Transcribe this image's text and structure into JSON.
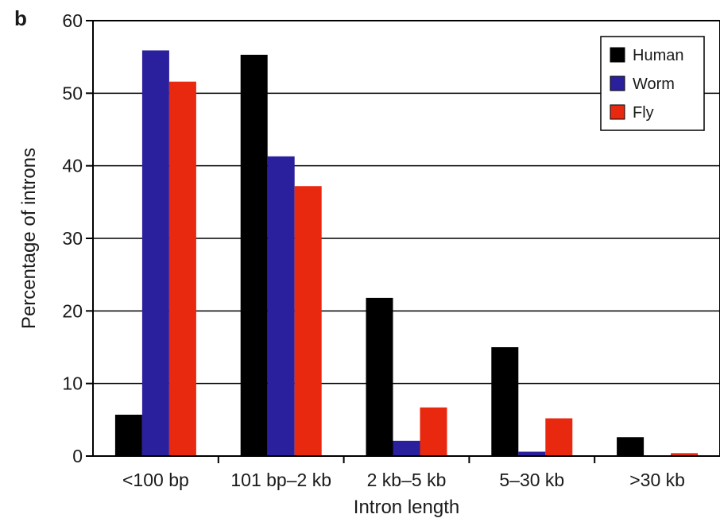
{
  "panel_label": "b",
  "chart_data": {
    "type": "bar",
    "title": "",
    "xlabel": "Intron length",
    "ylabel": "Percentage of introns",
    "ylim": [
      0,
      60
    ],
    "yticks": [
      0,
      10,
      20,
      30,
      40,
      50,
      60
    ],
    "categories": [
      "<100 bp",
      "101 bp–2 kb",
      "2 kb–5 kb",
      "5–30 kb",
      ">30 kb"
    ],
    "series": [
      {
        "name": "Human",
        "color": "#000000",
        "values": [
          5.7,
          55.3,
          21.8,
          15.0,
          2.6
        ]
      },
      {
        "name": "Worm",
        "color": "#2a1f9c",
        "values": [
          55.9,
          41.3,
          2.1,
          0.6,
          0.0
        ]
      },
      {
        "name": "Fly",
        "color": "#e8280f",
        "values": [
          51.6,
          37.2,
          6.7,
          5.2,
          0.4
        ]
      }
    ],
    "grid": "horizontal",
    "legend_position": "top-right"
  }
}
